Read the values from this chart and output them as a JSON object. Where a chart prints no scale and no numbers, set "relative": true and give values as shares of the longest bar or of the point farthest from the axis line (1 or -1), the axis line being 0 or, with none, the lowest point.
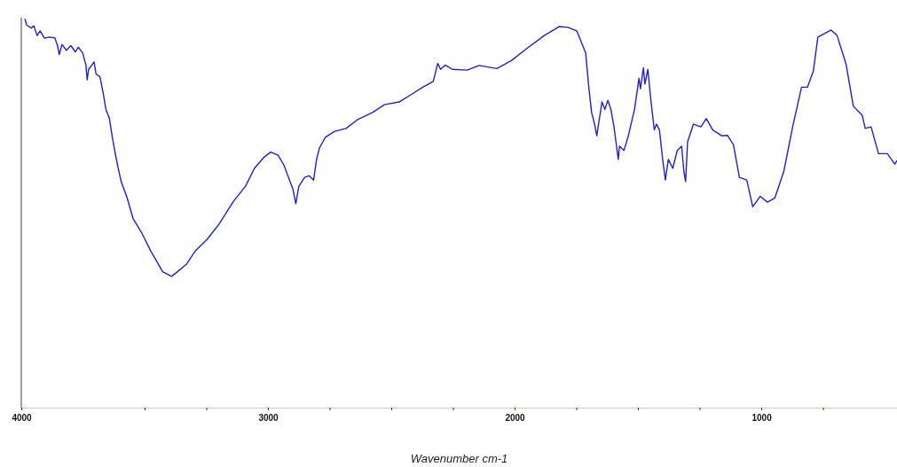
{
  "chart_data": {
    "type": "line",
    "xlabel": "Wavenumber cm-1",
    "relative": true,
    "xlim": [
      4000,
      450
    ],
    "xticks": [
      4000,
      {
        "value": 3500,
        "label": null
      },
      {
        "value": 3250,
        "label": null
      },
      3000,
      {
        "value": 2750,
        "label": null
      },
      {
        "value": 2500,
        "label": null
      },
      {
        "value": 2250,
        "label": null
      },
      2000,
      {
        "value": 1750,
        "label": null
      },
      {
        "value": 1500,
        "label": null
      },
      {
        "value": 1250,
        "label": null
      },
      1000,
      {
        "value": 750,
        "label": null
      }
    ],
    "x": [
      3985,
      3978,
      3960,
      3949,
      3936,
      3924,
      3906,
      3888,
      3864,
      3853,
      3846,
      3835,
      3817,
      3799,
      3781,
      3769,
      3751,
      3738,
      3733,
      3727,
      3705,
      3697,
      3681,
      3667,
      3657,
      3643,
      3631,
      3619,
      3607,
      3595,
      3571,
      3547,
      3511,
      3475,
      3427,
      3391,
      3367,
      3331,
      3295,
      3247,
      3199,
      3139,
      3091,
      3055,
      3019,
      2989,
      2959,
      2935,
      2917,
      2899,
      2887,
      2875,
      2851,
      2833,
      2815,
      2803,
      2791,
      2767,
      2731,
      2683,
      2636,
      2576,
      2528,
      2468,
      2420,
      2372,
      2330,
      2312,
      2300,
      2282,
      2252,
      2192,
      2144,
      2072,
      2012,
      1952,
      1880,
      1820,
      1784,
      1748,
      1724,
      1712,
      1700,
      1688,
      1676,
      1667,
      1658,
      1646,
      1634,
      1622,
      1610,
      1598,
      1586,
      1580,
      1575,
      1557,
      1539,
      1514,
      1496,
      1490,
      1478,
      1472,
      1460,
      1449,
      1434,
      1425,
      1413,
      1400,
      1389,
      1377,
      1359,
      1341,
      1323,
      1314,
      1307,
      1299,
      1275,
      1245,
      1223,
      1197,
      1161,
      1137,
      1113,
      1089,
      1059,
      1035,
      1005,
      975,
      945,
      909,
      873,
      837,
      813,
      789,
      771,
      717,
      693,
      657,
      627,
      591,
      579,
      555,
      525,
      489,
      459,
      451
    ],
    "series": [
      {
        "color": "#2020c8",
        "values": [
          1.0,
          0.985,
          0.977,
          0.983,
          0.958,
          0.97,
          0.951,
          0.954,
          0.952,
          0.932,
          0.909,
          0.935,
          0.92,
          0.932,
          0.916,
          0.928,
          0.913,
          0.882,
          0.844,
          0.871,
          0.89,
          0.859,
          0.852,
          0.806,
          0.768,
          0.745,
          0.696,
          0.654,
          0.616,
          0.582,
          0.54,
          0.487,
          0.449,
          0.403,
          0.35,
          0.338,
          0.35,
          0.369,
          0.403,
          0.433,
          0.472,
          0.532,
          0.57,
          0.616,
          0.643,
          0.658,
          0.65,
          0.624,
          0.593,
          0.563,
          0.525,
          0.57,
          0.593,
          0.597,
          0.586,
          0.639,
          0.669,
          0.696,
          0.711,
          0.719,
          0.742,
          0.76,
          0.78,
          0.787,
          0.806,
          0.825,
          0.84,
          0.886,
          0.871,
          0.882,
          0.871,
          0.869,
          0.881,
          0.873,
          0.894,
          0.924,
          0.958,
          0.981,
          0.979,
          0.97,
          0.932,
          0.913,
          0.829,
          0.76,
          0.73,
          0.7,
          0.738,
          0.787,
          0.768,
          0.791,
          0.768,
          0.726,
          0.669,
          0.639,
          0.673,
          0.662,
          0.7,
          0.768,
          0.848,
          0.821,
          0.875,
          0.833,
          0.871,
          0.799,
          0.715,
          0.73,
          0.715,
          0.639,
          0.586,
          0.639,
          0.616,
          0.662,
          0.673,
          0.608,
          0.582,
          0.684,
          0.73,
          0.723,
          0.744,
          0.715,
          0.7,
          0.701,
          0.677,
          0.593,
          0.586,
          0.517,
          0.544,
          0.529,
          0.54,
          0.608,
          0.723,
          0.825,
          0.825,
          0.867,
          0.954,
          0.972,
          0.958,
          0.886,
          0.776,
          0.753,
          0.719,
          0.723,
          0.654,
          0.654,
          0.627,
          0.635
        ]
      }
    ]
  }
}
